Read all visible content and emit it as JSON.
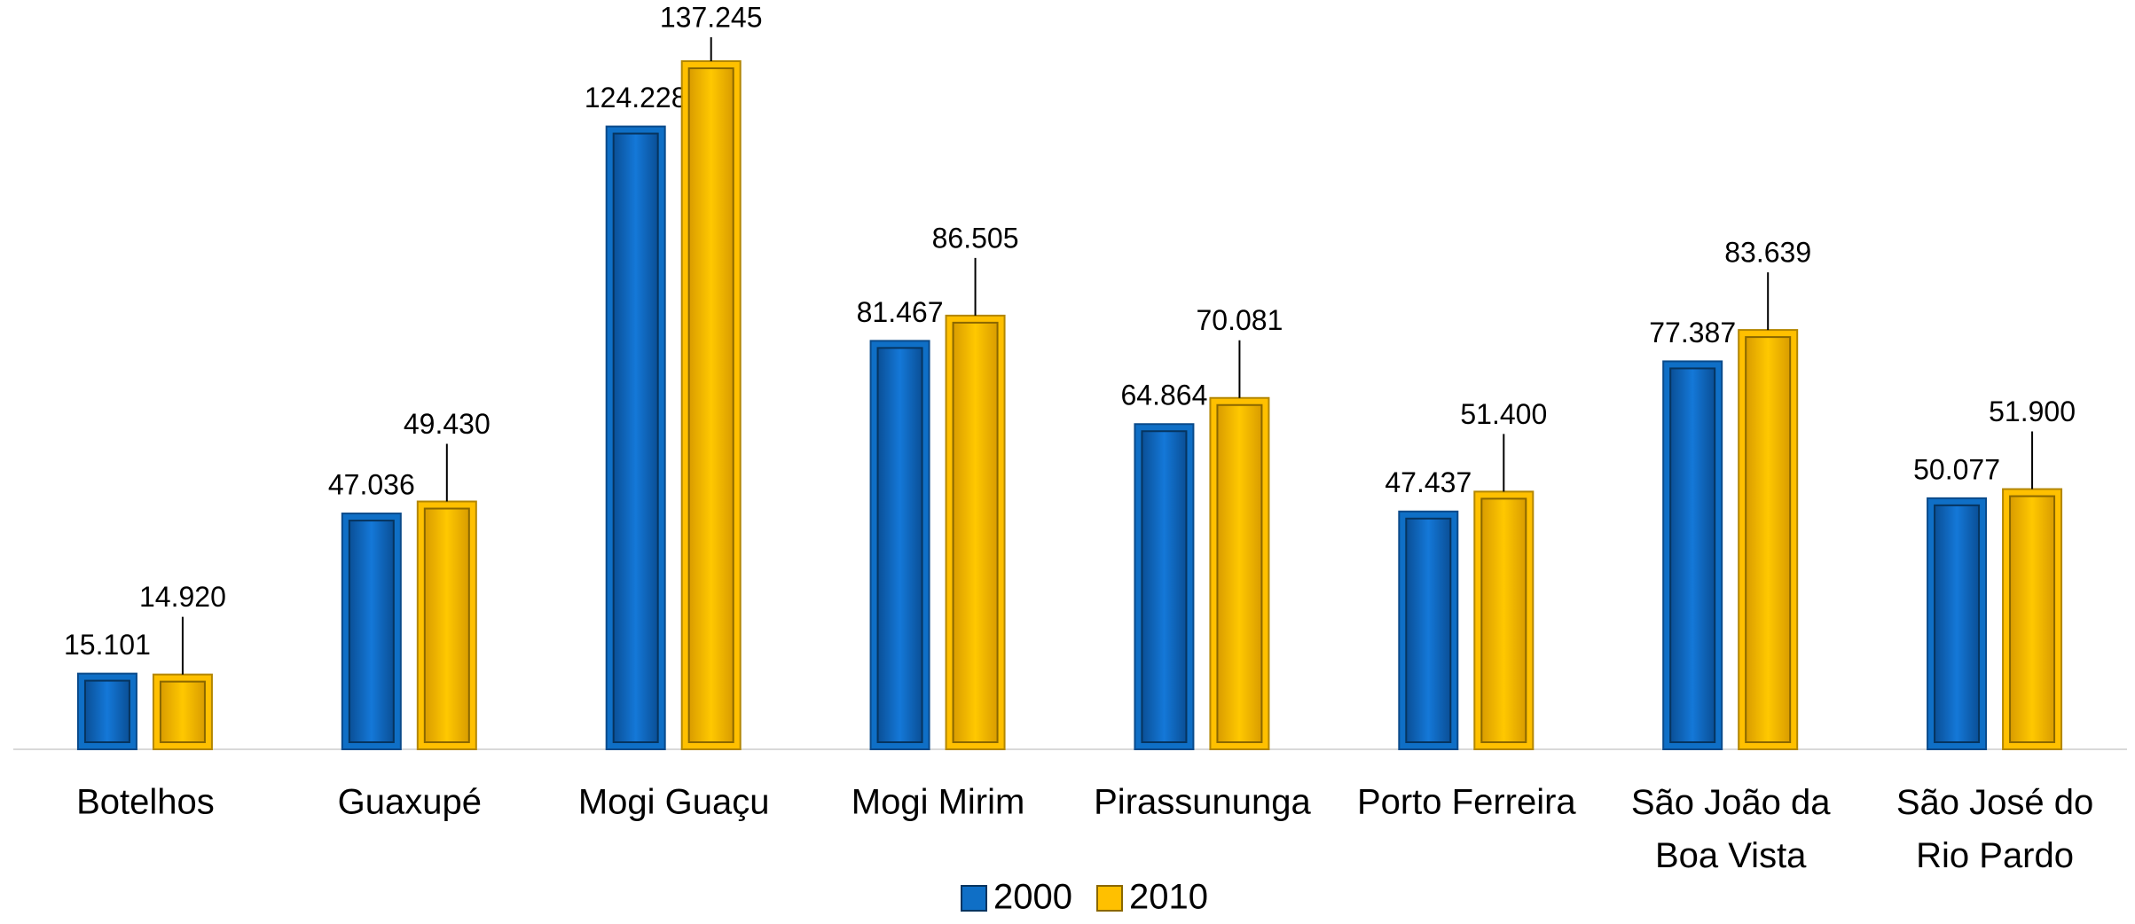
{
  "chart_data": {
    "type": "bar",
    "categories": [
      "Botelhos",
      "Guaxupé",
      "Mogi Guaçu",
      "Mogi Mirim",
      "Pirassununga",
      "Porto Ferreira",
      "São João da Boa Vista",
      "São José do Rio Pardo"
    ],
    "series": [
      {
        "name": "2000",
        "color": "#0f6fc6",
        "values": [
          15101,
          47036,
          124228,
          81467,
          64864,
          47437,
          77387,
          50077
        ],
        "value_labels": [
          "15.101",
          "47.036",
          "124.228",
          "81.467",
          "64.864",
          "47.437",
          "77.387",
          "50.077"
        ]
      },
      {
        "name": "2010",
        "color": "#ffc000",
        "values": [
          14920,
          49430,
          137245,
          86505,
          70081,
          51400,
          83639,
          51900
        ],
        "value_labels": [
          "14.920",
          "49.430",
          "137.245",
          "86.505",
          "70.081",
          "51.400",
          "83.639",
          "51.900"
        ]
      }
    ],
    "legend": "bottom"
  }
}
